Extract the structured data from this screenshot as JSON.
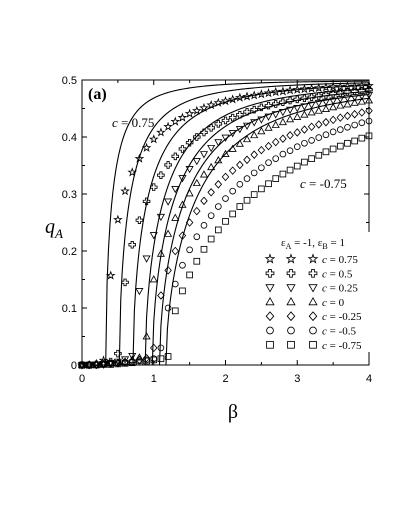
{
  "chart_data": {
    "type": "scatter",
    "panel_label": "(a)",
    "xlabel": "β",
    "ylabel_main": "q",
    "ylabel_sub": "A",
    "xlim": [
      0,
      4
    ],
    "ylim": [
      0,
      0.5
    ],
    "xticks": [
      0,
      1,
      2,
      3,
      4
    ],
    "yticks": [
      0,
      0.1,
      0.2,
      0.3,
      0.4,
      0.5
    ],
    "xtick_labels": [
      "0",
      "1",
      "2",
      "3",
      "4"
    ],
    "ytick_labels": [
      "0",
      "0.1",
      "0.2",
      "0.3",
      "0.4",
      "0.5"
    ],
    "grid": false,
    "annotations": [
      {
        "italic": "c",
        "text": " = 0.75",
        "pos": "upper-left"
      },
      {
        "italic": "c",
        "text": " = -0.75",
        "pos": "right"
      }
    ],
    "legend": {
      "placement": "center-right",
      "title_parts": [
        "ε",
        "A",
        " = -1, ε",
        "B",
        " = 1"
      ]
    },
    "series": [
      {
        "c": 0.75,
        "legend_label": " = 0.75",
        "marker": "star",
        "beta_c": 0.34,
        "line_beta_c": 0.33,
        "x": [
          0.0,
          0.1,
          0.2,
          0.3,
          0.4,
          0.5,
          0.6,
          0.7,
          0.8,
          0.9,
          1.0,
          1.1,
          1.2,
          1.3,
          1.4,
          1.5,
          1.6,
          1.7,
          1.8,
          1.9,
          2.0,
          2.1,
          2.2,
          2.3,
          2.4,
          2.5,
          2.6,
          2.7,
          2.8,
          2.9,
          3.0,
          3.1,
          3.2,
          3.3,
          3.4,
          3.5,
          3.6,
          3.7,
          3.8,
          3.9,
          4.0
        ],
        "y": [
          0.0,
          0.0,
          0.002,
          0.008,
          0.157,
          0.255,
          0.305,
          0.338,
          0.362,
          0.381,
          0.396,
          0.408,
          0.418,
          0.427,
          0.434,
          0.441,
          0.446,
          0.451,
          0.456,
          0.46,
          0.463,
          0.466,
          0.469,
          0.471,
          0.473,
          0.475,
          0.477,
          0.479,
          0.48,
          0.482,
          0.483,
          0.484,
          0.485,
          0.486,
          0.487,
          0.488,
          0.488,
          0.489,
          0.489,
          0.49,
          0.49
        ]
      },
      {
        "c": 0.5,
        "legend_label": " = 0.5",
        "marker": "cross",
        "beta_c": 0.53,
        "line_beta_c": 0.52,
        "x": [
          0.0,
          0.1,
          0.2,
          0.3,
          0.4,
          0.5,
          0.6,
          0.7,
          0.8,
          0.9,
          1.0,
          1.1,
          1.2,
          1.3,
          1.4,
          1.5,
          1.6,
          1.7,
          1.8,
          1.9,
          2.0,
          2.1,
          2.2,
          2.3,
          2.4,
          2.5,
          2.6,
          2.7,
          2.8,
          2.9,
          3.0,
          3.1,
          3.2,
          3.3,
          3.4,
          3.5,
          3.6,
          3.7,
          3.8,
          3.9,
          4.0
        ],
        "y": [
          0.0,
          0.0,
          0.001,
          0.003,
          0.006,
          0.02,
          0.145,
          0.211,
          0.254,
          0.287,
          0.312,
          0.333,
          0.351,
          0.366,
          0.379,
          0.39,
          0.4,
          0.408,
          0.416,
          0.423,
          0.429,
          0.434,
          0.439,
          0.444,
          0.448,
          0.452,
          0.455,
          0.458,
          0.461,
          0.464,
          0.466,
          0.468,
          0.47,
          0.472,
          0.474,
          0.476,
          0.477,
          0.479,
          0.48,
          0.481,
          0.483
        ]
      },
      {
        "c": 0.25,
        "legend_label": " = 0.25",
        "marker": "triangle-down",
        "beta_c": 0.72,
        "line_beta_c": 0.71,
        "x": [
          0.0,
          0.1,
          0.2,
          0.3,
          0.4,
          0.5,
          0.6,
          0.7,
          0.8,
          0.9,
          1.0,
          1.1,
          1.2,
          1.3,
          1.4,
          1.5,
          1.6,
          1.7,
          1.8,
          1.9,
          2.0,
          2.1,
          2.2,
          2.3,
          2.4,
          2.5,
          2.6,
          2.7,
          2.8,
          2.9,
          3.0,
          3.1,
          3.2,
          3.3,
          3.4,
          3.5,
          3.6,
          3.7,
          3.8,
          3.9,
          4.0
        ],
        "y": [
          0.0,
          0.0,
          0.001,
          0.002,
          0.004,
          0.006,
          0.01,
          0.016,
          0.13,
          0.187,
          0.228,
          0.26,
          0.287,
          0.309,
          0.328,
          0.344,
          0.358,
          0.37,
          0.381,
          0.391,
          0.399,
          0.407,
          0.414,
          0.42,
          0.426,
          0.431,
          0.436,
          0.44,
          0.444,
          0.448,
          0.451,
          0.454,
          0.457,
          0.46,
          0.462,
          0.464,
          0.467,
          0.469,
          0.47,
          0.472,
          0.474
        ]
      },
      {
        "c": 0,
        "legend_label": " = 0",
        "marker": "triangle-up",
        "beta_c": 0.88,
        "line_beta_c": 0.88,
        "x": [
          0.0,
          0.1,
          0.2,
          0.3,
          0.4,
          0.5,
          0.6,
          0.7,
          0.8,
          0.9,
          1.0,
          1.1,
          1.2,
          1.3,
          1.4,
          1.5,
          1.6,
          1.7,
          1.8,
          1.9,
          2.0,
          2.1,
          2.2,
          2.3,
          2.4,
          2.5,
          2.6,
          2.7,
          2.8,
          2.9,
          3.0,
          3.1,
          3.2,
          3.3,
          3.4,
          3.5,
          3.6,
          3.7,
          3.8,
          3.9,
          4.0
        ],
        "y": [
          0.0,
          0.0,
          0.0,
          0.001,
          0.003,
          0.004,
          0.006,
          0.009,
          0.013,
          0.05,
          0.15,
          0.195,
          0.23,
          0.258,
          0.281,
          0.301,
          0.319,
          0.334,
          0.347,
          0.359,
          0.37,
          0.379,
          0.388,
          0.396,
          0.403,
          0.41,
          0.416,
          0.421,
          0.426,
          0.431,
          0.435,
          0.439,
          0.443,
          0.446,
          0.449,
          0.452,
          0.455,
          0.457,
          0.46,
          0.462,
          0.464
        ]
      },
      {
        "c": -0.25,
        "legend_label": " = -0.25",
        "marker": "diamond",
        "beta_c": 0.98,
        "line_beta_c": 0.98,
        "x": [
          0.0,
          0.1,
          0.2,
          0.3,
          0.4,
          0.5,
          0.6,
          0.7,
          0.8,
          0.9,
          1.0,
          1.1,
          1.2,
          1.3,
          1.4,
          1.5,
          1.6,
          1.7,
          1.8,
          1.9,
          2.0,
          2.1,
          2.2,
          2.3,
          2.4,
          2.5,
          2.6,
          2.7,
          2.8,
          2.9,
          3.0,
          3.1,
          3.2,
          3.3,
          3.4,
          3.5,
          3.6,
          3.7,
          3.8,
          3.9,
          4.0
        ],
        "y": [
          0.0,
          0.0,
          0.0,
          0.001,
          0.002,
          0.003,
          0.005,
          0.007,
          0.009,
          0.012,
          0.03,
          0.122,
          0.166,
          0.2,
          0.227,
          0.25,
          0.27,
          0.288,
          0.303,
          0.317,
          0.33,
          0.341,
          0.351,
          0.36,
          0.369,
          0.377,
          0.384,
          0.391,
          0.397,
          0.403,
          0.408,
          0.413,
          0.418,
          0.422,
          0.426,
          0.43,
          0.434,
          0.437,
          0.44,
          0.443,
          0.446
        ]
      },
      {
        "c": -0.5,
        "legend_label": " = -0.5",
        "marker": "circle",
        "beta_c": 1.08,
        "line_beta_c": 1.08,
        "x": [
          0.0,
          0.1,
          0.2,
          0.3,
          0.4,
          0.5,
          0.6,
          0.7,
          0.8,
          0.9,
          1.0,
          1.1,
          1.2,
          1.3,
          1.4,
          1.5,
          1.6,
          1.7,
          1.8,
          1.9,
          2.0,
          2.1,
          2.2,
          2.3,
          2.4,
          2.5,
          2.6,
          2.7,
          2.8,
          2.9,
          3.0,
          3.1,
          3.2,
          3.3,
          3.4,
          3.5,
          3.6,
          3.7,
          3.8,
          3.9,
          4.0
        ],
        "y": [
          0.0,
          0.0,
          0.0,
          0.001,
          0.002,
          0.003,
          0.004,
          0.005,
          0.007,
          0.009,
          0.011,
          0.03,
          0.1,
          0.142,
          0.175,
          0.202,
          0.225,
          0.245,
          0.262,
          0.278,
          0.292,
          0.305,
          0.317,
          0.327,
          0.337,
          0.346,
          0.355,
          0.362,
          0.37,
          0.376,
          0.383,
          0.389,
          0.394,
          0.399,
          0.404,
          0.409,
          0.413,
          0.417,
          0.421,
          0.425,
          0.428
        ]
      },
      {
        "c": -0.75,
        "legend_label": " = -0.75",
        "marker": "square",
        "beta_c": 1.17,
        "line_beta_c": 1.17,
        "x": [
          0.0,
          0.1,
          0.2,
          0.3,
          0.4,
          0.5,
          0.6,
          0.7,
          0.8,
          0.9,
          1.0,
          1.1,
          1.2,
          1.3,
          1.4,
          1.5,
          1.6,
          1.7,
          1.8,
          1.9,
          2.0,
          2.1,
          2.2,
          2.3,
          2.4,
          2.5,
          2.6,
          2.7,
          2.8,
          2.9,
          3.0,
          3.1,
          3.2,
          3.3,
          3.4,
          3.5,
          3.6,
          3.7,
          3.8,
          3.9,
          4.0
        ],
        "y": [
          0.0,
          0.0,
          0.0,
          0.001,
          0.001,
          0.002,
          0.003,
          0.004,
          0.005,
          0.007,
          0.009,
          0.011,
          0.015,
          0.095,
          0.13,
          0.158,
          0.182,
          0.203,
          0.221,
          0.237,
          0.252,
          0.265,
          0.278,
          0.289,
          0.299,
          0.309,
          0.318,
          0.327,
          0.335,
          0.342,
          0.349,
          0.356,
          0.362,
          0.368,
          0.374,
          0.379,
          0.384,
          0.389,
          0.393,
          0.398,
          0.402
        ]
      }
    ]
  }
}
